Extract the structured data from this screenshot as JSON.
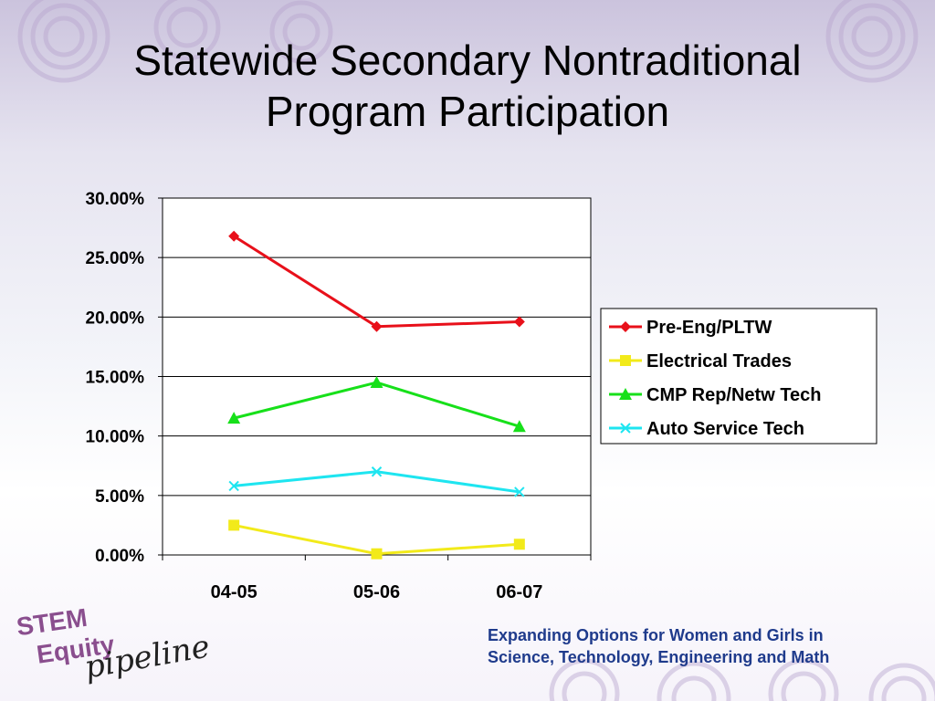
{
  "slide": {
    "title_line1": "Statewide Secondary Nontraditional",
    "title_line2": "Program Participation",
    "logo": {
      "line1": "STEM",
      "line2": "Equity",
      "line3": "pipeline"
    },
    "tagline_line1": "Expanding Options for Women and Girls in",
    "tagline_line2": "Science, Technology, Engineering and Math"
  },
  "chart_data": {
    "type": "line",
    "categories": [
      "04-05",
      "05-06",
      "06-07"
    ],
    "ylim": [
      0,
      30
    ],
    "yticks": [
      "0.00%",
      "5.00%",
      "10.00%",
      "15.00%",
      "20.00%",
      "25.00%",
      "30.00%"
    ],
    "grid": true,
    "legend_position": "right",
    "series": [
      {
        "name": "Pre-Eng/PLTW",
        "values": [
          26.8,
          19.2,
          19.6
        ],
        "color": "#e8101a",
        "marker": "diamond"
      },
      {
        "name": "Electrical Trades",
        "values": [
          2.5,
          0.1,
          0.9
        ],
        "color": "#f2ea1a",
        "marker": "square"
      },
      {
        "name": "CMP Rep/Netw Tech",
        "values": [
          11.5,
          14.5,
          10.8
        ],
        "color": "#17e01a",
        "marker": "triangle"
      },
      {
        "name": "Auto Service Tech",
        "values": [
          5.8,
          7.0,
          5.3
        ],
        "color": "#1ee5f0",
        "marker": "x"
      }
    ]
  }
}
